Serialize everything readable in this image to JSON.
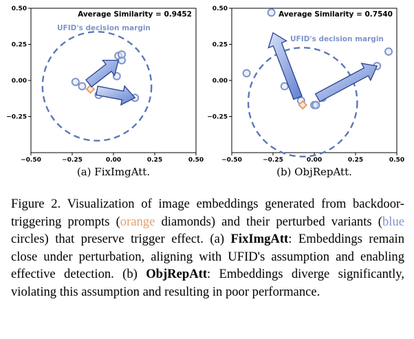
{
  "chart_data": [
    {
      "type": "scatter",
      "subcaption": "(a) FixImgAtt.",
      "annotation": "Average Similarity = 0.9452",
      "margin_label": "UFID's decision margin",
      "xlim": [
        -0.5,
        0.5
      ],
      "ylim": [
        -0.5,
        0.5
      ],
      "xticks": [
        "-0.50",
        "-0.25",
        "0.00",
        "0.25",
        "0.50"
      ],
      "yticks": [
        "0.50",
        "0.25",
        "0.00",
        "-0.25"
      ],
      "trigger_point": {
        "x": -0.14,
        "y": -0.06
      },
      "perturbed_points": [
        {
          "x": -0.23,
          "y": -0.01
        },
        {
          "x": -0.19,
          "y": -0.04
        },
        {
          "x": -0.09,
          "y": -0.1
        },
        {
          "x": 0.02,
          "y": 0.03
        },
        {
          "x": 0.03,
          "y": 0.17
        },
        {
          "x": 0.05,
          "y": 0.14
        },
        {
          "x": 0.05,
          "y": 0.18
        },
        {
          "x": 0.13,
          "y": -0.12
        }
      ],
      "decision_margin": {
        "cx": -0.1,
        "cy": -0.04,
        "r": 0.33
      },
      "arrows": [
        {
          "from": [
            -0.15,
            -0.02
          ],
          "to": [
            0.03,
            0.14
          ]
        },
        {
          "from": [
            -0.1,
            -0.07
          ],
          "to": [
            0.13,
            -0.12
          ]
        }
      ]
    },
    {
      "type": "scatter",
      "subcaption": "(b) ObjRepAtt.",
      "annotation": "Average Similarity = 0.7540",
      "margin_label": "UFID's decision margin",
      "xlim": [
        -0.5,
        0.5
      ],
      "ylim": [
        -0.5,
        0.5
      ],
      "xticks": [
        "-0.50",
        "-0.25",
        "0.00",
        "0.25",
        "0.50"
      ],
      "yticks": [
        "0.50",
        "0.25",
        "0.00",
        "-0.25"
      ],
      "trigger_point": {
        "x": -0.07,
        "y": -0.17
      },
      "perturbed_points": [
        {
          "x": -0.41,
          "y": 0.05
        },
        {
          "x": -0.26,
          "y": 0.47
        },
        {
          "x": -0.18,
          "y": -0.04
        },
        {
          "x": -0.08,
          "y": -0.14
        },
        {
          "x": 0.0,
          "y": -0.17
        },
        {
          "x": 0.01,
          "y": -0.17
        },
        {
          "x": 0.05,
          "y": -0.12
        },
        {
          "x": 0.38,
          "y": 0.1
        },
        {
          "x": 0.45,
          "y": 0.2
        }
      ],
      "decision_margin": {
        "cx": -0.07,
        "cy": -0.15,
        "r": 0.33
      },
      "arrows": [
        {
          "from": [
            -0.1,
            -0.12
          ],
          "to": [
            -0.25,
            0.33
          ]
        },
        {
          "from": [
            0.02,
            -0.12
          ],
          "to": [
            0.38,
            0.1
          ]
        }
      ]
    }
  ],
  "caption": {
    "figure_label": "Figure 2.",
    "part1": "Visualization of image embeddings generated from backdoor-triggering prompts (",
    "orange_word": "orange",
    "part2": " diamonds) and their perturbed variants (",
    "blue_word": "blue",
    "part3": " circles) that preserve trigger effect. (a) ",
    "bold_a": "FixImgAtt",
    "part4": ": Embeddings remain close under perturbation, aligning with UFID's assumption and enabling effective detection. (b) ",
    "bold_b": "ObjRepAtt",
    "part5": ": Embeddings diverge significantly, violating this assumption and resulting in poor performance."
  },
  "colors": {
    "point": "#7f95c8",
    "trigger": "#e0a070",
    "margin": "#5a78b8",
    "arrow_fill": "#7f98d8",
    "arrow_stroke": "#2a3f8a"
  }
}
